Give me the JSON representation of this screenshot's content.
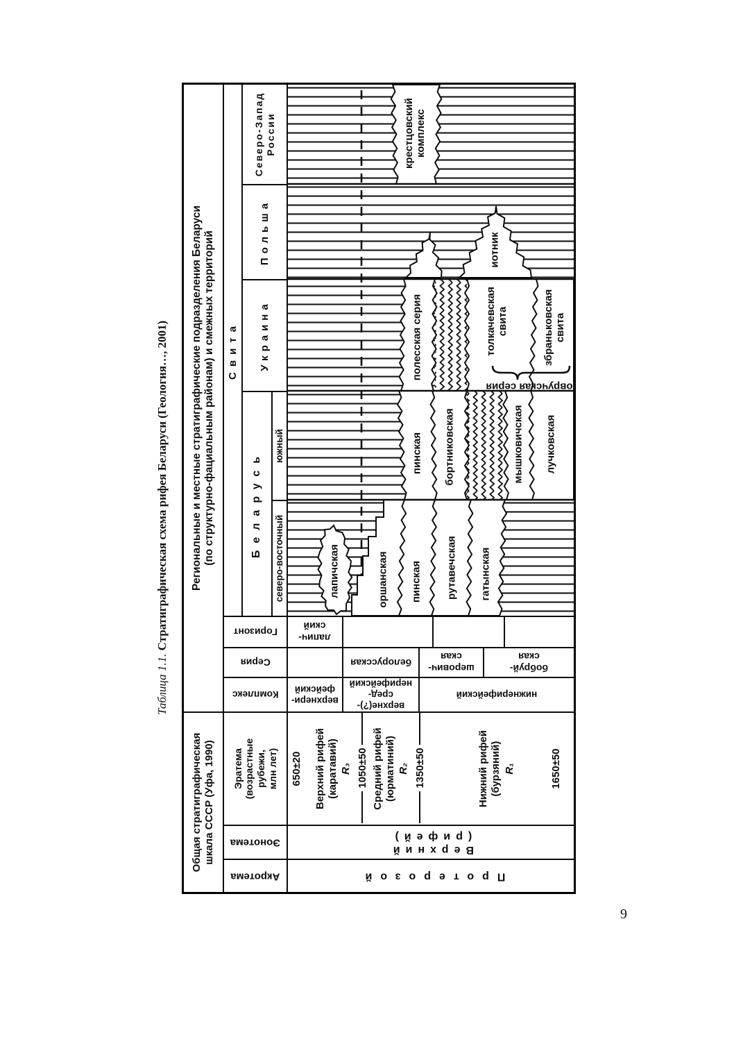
{
  "page_number": "9",
  "title": {
    "prefix": "Таблица 1.1.",
    "text": " Стратиграфическая схема рифея Беларуси (Геология…, 2001)"
  },
  "general_scale": {
    "header": "Общая стратиграфическая\nшкала СССР  (Уфа, 1990)",
    "acrotheme_label": "Акротема",
    "eonotheme_label": "Эонотема",
    "eratheme_label": "Эратема\n(возрастные\nрубежи,\nмлн лет)",
    "acrotheme_value": "Протерозой",
    "eonotheme_value": "Верхний (рифей)",
    "upper_riphean": {
      "age_top": "650±20",
      "name": "Верхний рифей\n(каратавий)",
      "index": "R₃"
    },
    "middle_riphean": {
      "boundary_age": "1050±50",
      "name": "Средний рифей\n(юрматиний)",
      "index": "R₂"
    },
    "lower_riphean": {
      "boundary_age": "1350±50",
      "name": "Нижний рифей\n(бурзяний)",
      "index": "R₁",
      "age_bottom": "1650±50"
    }
  },
  "regional_scale": {
    "header": "Региональные и местные стратиграфические подразделения Беларуси\n(по структурно-фациальным районам) и смежных территорий",
    "complex_label": "Комплекс",
    "series_label": "Серия",
    "horizon_label": "Горизонт",
    "svita_label": "Свита",
    "complexes": {
      "upper": "верхнери-\nфейский",
      "upper_middle": "верхне(?)-сред-\nнерифейский",
      "lower": "нижнерифейский"
    },
    "series": {
      "belorusskaya": "белорусская",
      "sherovichskaya": "шерович-\nская",
      "bobruyskaya": "бобруй-\nская"
    },
    "horizons": {
      "lapichsky": "лапич-\nский"
    },
    "regions": {
      "belarus": "Беларусь",
      "belarus_ne": "северо-восточный",
      "belarus_south": "южный",
      "ukraine": "Украина",
      "poland": "Польша",
      "nw_russia": "Северо-Запад\nРоссии"
    },
    "formations": {
      "lapichskaya": "лапичская",
      "orshanskaya": "оршанская",
      "pinskaya_ne": "пинская",
      "rutavechskaya": "рутавечская",
      "gatynskaya": "гатынская",
      "pinskaya_south": "пинская",
      "bortnikovskaya": "бортниковская",
      "myshkovichskaya": "мышковичская",
      "luchkovskaya": "лучковская",
      "polesskaya": "полесская серия",
      "tolkachevskaya": "толкачевская\nсвита",
      "zbrankovskaya": "збраньковская\nсвита",
      "ovruchskaya": "овручская серия",
      "iotnik": "иотник",
      "krestsovsky": "крестцовский\nкомплекс"
    }
  }
}
